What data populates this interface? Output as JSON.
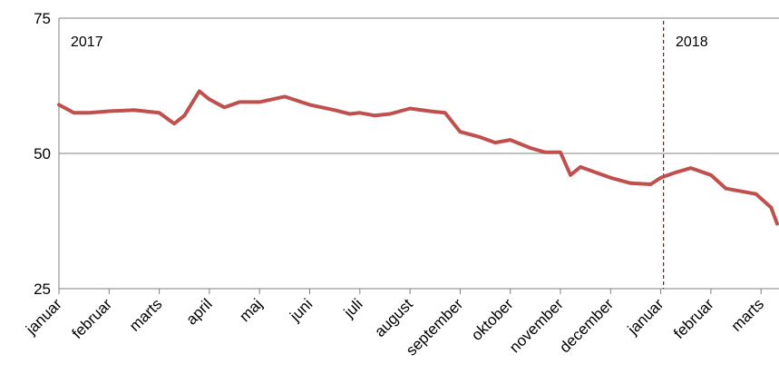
{
  "chart_data": {
    "type": "line",
    "title": "",
    "xlabel": "",
    "ylabel": "",
    "ylim": [
      25,
      75
    ],
    "yticks": [
      25,
      50,
      75
    ],
    "grid": "horizontal",
    "colors": {
      "line": "#C0504D",
      "grid": "#808080",
      "marker": "#C00000"
    },
    "year_labels": [
      "2017",
      "2018"
    ],
    "month_labels": [
      "januar",
      "februar",
      "marts",
      "april",
      "maj",
      "juni",
      "juli",
      "august",
      "september",
      "oktober",
      "november",
      "december",
      "januar",
      "februar",
      "marts"
    ],
    "x": [
      0,
      0.3,
      0.6,
      1.0,
      1.5,
      2.0,
      2.3,
      2.5,
      2.8,
      3.0,
      3.3,
      3.6,
      4.0,
      4.5,
      5.0,
      5.5,
      5.8,
      6.0,
      6.3,
      6.6,
      7.0,
      7.4,
      7.7,
      8.0,
      8.4,
      8.7,
      9.0,
      9.4,
      9.7,
      10.0,
      10.2,
      10.4,
      10.7,
      11.0,
      11.4,
      11.8,
      12.0,
      12.3,
      12.6,
      13.0,
      13.3,
      13.6,
      13.9,
      14.2,
      14.5
    ],
    "values": [
      59,
      57.5,
      57.5,
      57.8,
      58,
      57.5,
      55.5,
      57,
      61.5,
      60,
      58.5,
      59.5,
      59.5,
      60.5,
      59,
      58,
      57.3,
      57.5,
      57,
      57.3,
      58.3,
      57.8,
      57.5,
      54,
      53,
      52,
      52.5,
      51,
      50.2,
      50.2,
      46,
      47.5,
      46.5,
      45.5,
      44.5,
      44.3,
      45.5,
      46.5,
      47.3,
      46,
      43.5,
      43,
      42.5,
      40,
      37
    ]
  }
}
